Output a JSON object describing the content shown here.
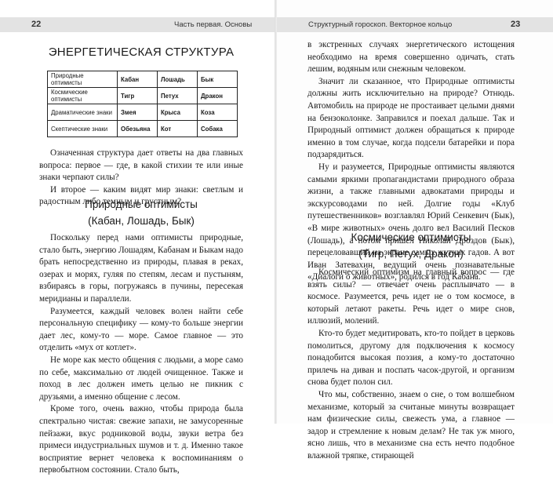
{
  "left_page": {
    "page_number": "22",
    "running_head": "Часть первая. Основы",
    "title": "ЭНЕРГЕТИЧЕСКАЯ СТРУКТУРА",
    "table": {
      "rows": [
        [
          "Природные оптимисты",
          "Кабан",
          "Лошадь",
          "Бык"
        ],
        [
          "Космические оптимисты",
          "Тигр",
          "Петух",
          "Дракон"
        ],
        [
          "Драматические знаки",
          "Змея",
          "Крыса",
          "Коза"
        ],
        [
          "Скептические знаки",
          "Обезьяна",
          "Кот",
          "Собака"
        ]
      ]
    },
    "paragraphs": [
      "Означенная структура дает ответы на два главных вопроса: первое — где, в какой стихии те или иные знаки черпают силы?",
      "И второе — каким видят мир знаки: светлым и радостным либо темным и грустным?"
    ],
    "section": {
      "heading": "Природные оптимисты",
      "subheading": "(Кабан, Лошадь, Бык)",
      "paragraphs": [
        "Поскольку перед нами оптимисты природные, стало быть, энергию Лошадям, Кабанам и Быкам надо брать непосредственно из природы, плавая в реках, озерах и морях, гуляя по степям, лесам и пустыням, взбираясь в горы, погружаясь в пучины, пересекая меридианы и параллели.",
        "Разумеется, каждый человек волен найти себе персональную специфику — кому-то больше энергии дает лес, кому-то — море. Самое главное — это отделить «мух от котлет».",
        "Не море как место общения с людьми, а море само по себе, максимально от людей очищенное. Также и поход в лес должен иметь целью не пикник с друзьями, а именно общение с лесом.",
        "Кроме того, очень важно, чтобы природа была спектрально чистая: свежие запахи, не замусоренные пейзажи, вкус родниковой воды, звуки ветра без примеси индустриальных шумов и т. д. Именно такое восприятие вернет человека к воспоминаниям о первобытном состоянии. Стало быть,"
      ]
    }
  },
  "right_page": {
    "page_number": "23",
    "running_head": "Структурный гороскоп. Векторное кольцо",
    "paragraphs": [
      "в экстренных случаях энергетического истощения необходимо на время совершенно одичать, стать лешим, водяным или снежным человеком.",
      "Значит ли сказанное, что Природные оптимисты должны жить исключительно на природе? Отнюдь. Автомобиль на природе не простаивает целыми днями на бензоколонке. Заправился и поехал дальше. Так и Природный оптимист должен обращаться к природе именно в том случае, когда подсели батарейки и пора подзарядиться.",
      "Ну и разумеется, Природные оптимисты являются самыми яркими пропагандистами природного образа жизни, а также главными адвокатами природы и экскурсоводами по ней. Долгие годы «Клуб путешественников» возглавлял Юрий Сенкевич (Бык), «В мире животных» очень долго вел Василий Песков (Лошадь), а потом пришел Николай Дроздов (Бык), перецеловавший на экране самых жутких гадов. А вот Иван Затевахин, ведущий очень познавательные «Диалоги о животных», родился в год Кабана."
    ],
    "section": {
      "heading": "Космические оптимисты",
      "subheading": "(Тигр, Петух, Дракон)",
      "paragraphs": [
        "Космический оптимизм на главный вопрос — где взять силы? — отвечает очень расплывчато — в космосе. Разумеется, речь идет не о том космосе, в который летают ракеты. Речь идет о мире снов, иллюзий, молений.",
        "Кто-то будет медитировать, кто-то пойдет в церковь помолиться, другому для подключения к космосу понадобится высокая поэзия, а кому-то достаточно прилечь на диван и поспать часок-другой, и организм снова будет полон сил.",
        "Что мы, собственно, знаем о сне, о том волшебном механизме, который за считаные минуты возвращает нам физические силы, свежесть ума, а главное — задор и стремление к новым делам? Не так уж много, ясно лишь, что в механизме сна есть нечто подобное влажной тряпке, стирающей"
      ]
    }
  }
}
